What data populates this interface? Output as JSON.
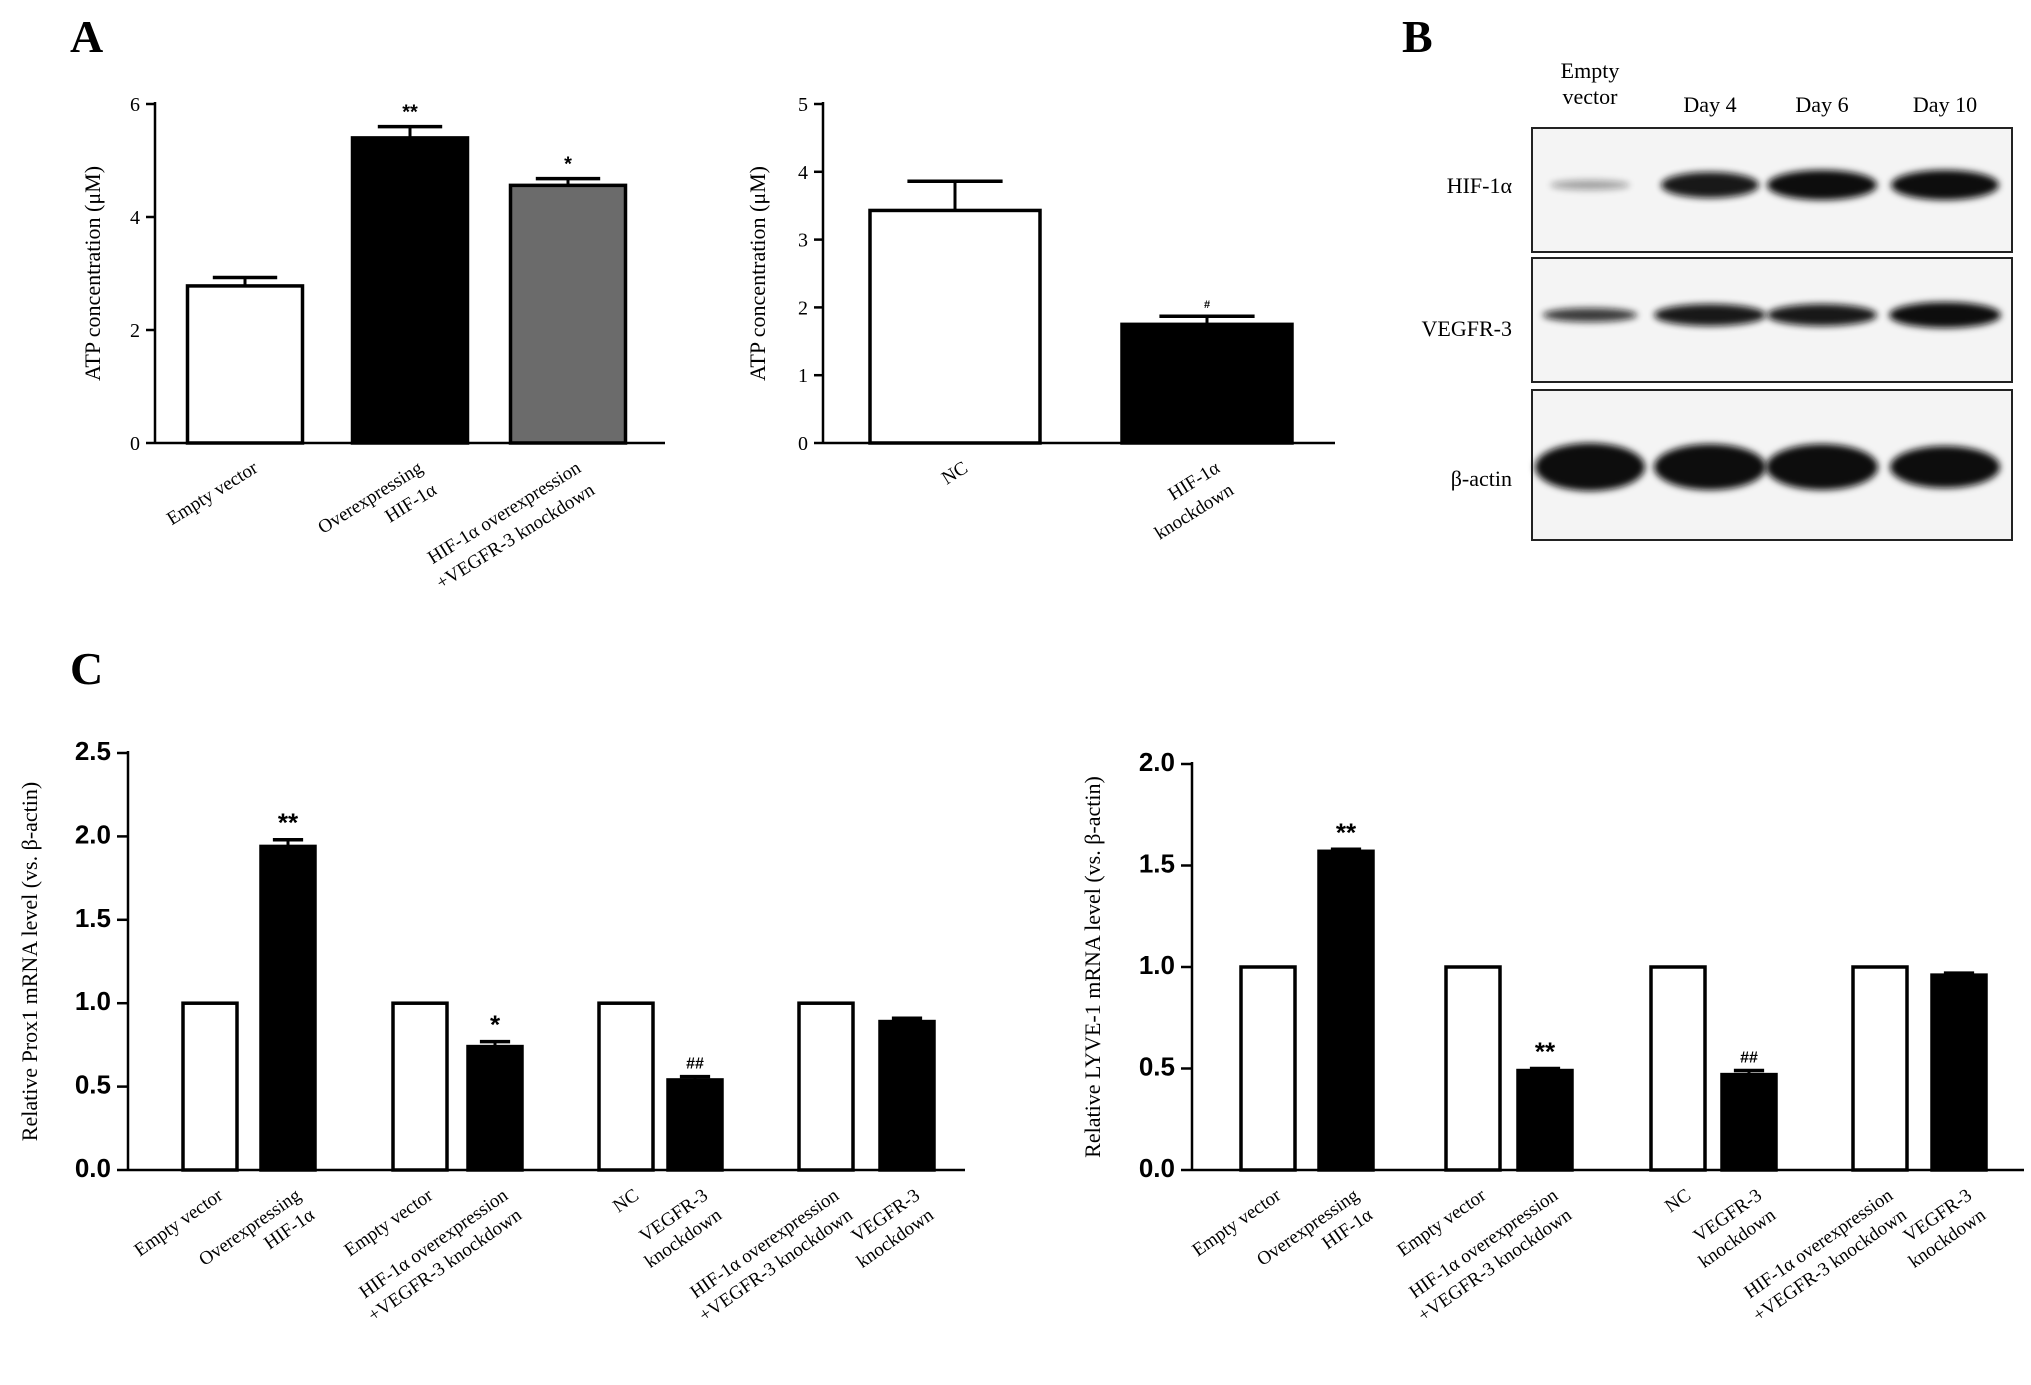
{
  "panels": {
    "a": "A",
    "b": "B",
    "c": "C"
  },
  "chart_data": [
    {
      "id": "A1",
      "type": "bar",
      "ylabel": "ATP concentration  (μM)",
      "ylim": [
        0,
        6
      ],
      "yticks": [
        "0",
        "2",
        "4",
        "6"
      ],
      "categories": [
        [
          "Empty vector"
        ],
        [
          "Overexpressing",
          "HIF-1α"
        ],
        [
          "HIF-1α overexpression",
          "+VEGFR-3 knockdown"
        ]
      ],
      "values": [
        2.78,
        5.4,
        4.56
      ],
      "errors": [
        0.15,
        0.2,
        0.12
      ],
      "fills": [
        "#ffffff",
        "#000000",
        "#6b6b6b"
      ],
      "significance": [
        "",
        "**",
        "*"
      ]
    },
    {
      "id": "A2",
      "type": "bar",
      "ylabel": "ATP concentration  (μM)",
      "ylim": [
        0,
        5
      ],
      "yticks": [
        "0",
        "1",
        "2",
        "3",
        "4",
        "5"
      ],
      "categories": [
        [
          "NC"
        ],
        [
          "HIF-1α",
          "knockdown"
        ]
      ],
      "values": [
        3.43,
        1.75
      ],
      "errors": [
        0.43,
        0.12
      ],
      "fills": [
        "#ffffff",
        "#000000"
      ],
      "significance": [
        "",
        "#"
      ]
    },
    {
      "id": "C1",
      "type": "bar",
      "ylabel": "Relative Prox1 mRNA level (vs. β-actin)",
      "ylim": [
        0,
        2.5
      ],
      "yticks": [
        "0.0",
        "0.5",
        "1.0",
        "1.5",
        "2.0",
        "2.5"
      ],
      "categories": [
        [
          "Empty vector"
        ],
        [
          "Overexpressing",
          "HIF-1α"
        ],
        [
          "Empty vector"
        ],
        [
          "HIF-1α overexpression",
          "+VEGFR-3 knockdown"
        ],
        [
          "NC"
        ],
        [
          "VEGFR-3",
          "knockdown"
        ],
        [
          "HIF-1α overexpression",
          "+VEGFR-3 knockdown"
        ],
        [
          "VEGFR-3",
          "knockdown"
        ]
      ],
      "values": [
        1.0,
        1.94,
        1.0,
        0.74,
        1.0,
        0.54,
        1.0,
        0.89
      ],
      "errors": [
        0,
        0.04,
        0,
        0.03,
        0,
        0.02,
        0,
        0.02
      ],
      "fills": [
        "#ffffff",
        "#000000",
        "#ffffff",
        "#000000",
        "#ffffff",
        "#000000",
        "#ffffff",
        "#000000"
      ],
      "significance": [
        "",
        "**",
        "",
        "*",
        "",
        "##",
        "",
        ""
      ]
    },
    {
      "id": "C2",
      "type": "bar",
      "ylabel": "Relative LYVE-1 mRNA level (vs. β-actin)",
      "ylim": [
        0,
        2.0
      ],
      "yticks": [
        "0.0",
        "0.5",
        "1.0",
        "1.5",
        "2.0"
      ],
      "categories": [
        [
          "Empty vector"
        ],
        [
          "Overexpressing",
          "HIF-1α"
        ],
        [
          "Empty vector"
        ],
        [
          "HIF-1α overexpression",
          "+VEGFR-3 knockdown"
        ],
        [
          "NC"
        ],
        [
          "VEGFR-3",
          "knockdown"
        ],
        [
          "HIF-1α overexpression",
          "+VEGFR-3 knockdown"
        ],
        [
          "VEGFR-3",
          "knockdown"
        ]
      ],
      "values": [
        1.0,
        1.57,
        1.0,
        0.49,
        1.0,
        0.47,
        1.0,
        0.96
      ],
      "errors": [
        0,
        0.01,
        0,
        0.01,
        0,
        0.02,
        0,
        0.01
      ],
      "fills": [
        "#ffffff",
        "#000000",
        "#ffffff",
        "#000000",
        "#ffffff",
        "#000000",
        "#ffffff",
        "#000000"
      ],
      "significance": [
        "",
        "**",
        "",
        "**",
        "",
        "##",
        "",
        ""
      ]
    }
  ],
  "blot": {
    "columns": [
      [
        "Empty",
        "vector"
      ],
      [
        "Day 4"
      ],
      [
        "Day 6"
      ],
      [
        "Day 10"
      ]
    ],
    "rows": [
      "HIF-1α",
      "VEGFR-3",
      "β-actin"
    ]
  }
}
